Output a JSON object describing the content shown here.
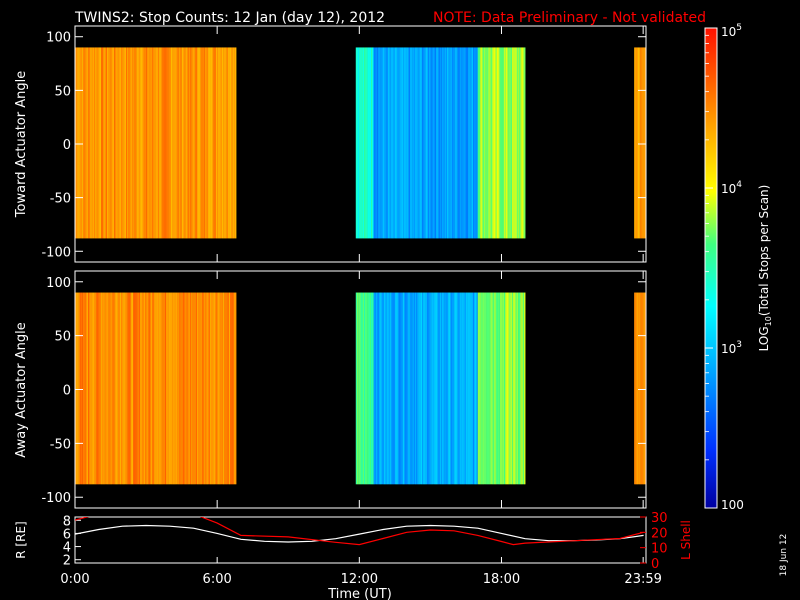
{
  "header": {
    "title": "TWINS2: Stop Counts: 12 Jan (day  12), 2012",
    "note": "NOTE: Data Preliminary - Not validated",
    "note_color": "#ff0000"
  },
  "stamp": "18 Jun 12",
  "chart_data": [
    {
      "type": "heatmap",
      "ylabel": "Toward Actuator Angle",
      "ylim": [
        -110,
        110
      ],
      "yticks": [
        "100",
        "50",
        "0",
        "-50",
        "-100"
      ],
      "ytick_values": [
        100,
        50,
        0,
        -50,
        -100
      ],
      "y_extent": [
        -88,
        90
      ],
      "x_range_hours": [
        0,
        24.1
      ],
      "data_blocks_ut": [
        [
          "0:00",
          "6:50"
        ],
        [
          "11:50",
          "19:00"
        ],
        [
          "23:35",
          "24:05"
        ]
      ],
      "log_counts_segments": [
        {
          "from_hour": 0.0,
          "to_hour": 6.8,
          "mean_log10": 4.45
        },
        {
          "from_hour": 11.85,
          "to_hour": 12.6,
          "mean_log10": 3.4
        },
        {
          "from_hour": 12.6,
          "to_hour": 17.0,
          "mean_log10": 2.85
        },
        {
          "from_hour": 17.0,
          "to_hour": 19.0,
          "mean_log10": 3.8
        },
        {
          "from_hour": 23.6,
          "to_hour": 24.1,
          "mean_log10": 4.4
        }
      ]
    },
    {
      "type": "heatmap",
      "ylabel": "Away Actuator Angle",
      "ylim": [
        -110,
        110
      ],
      "yticks": [
        "100",
        "50",
        "0",
        "-50",
        "-100"
      ],
      "ytick_values": [
        100,
        50,
        0,
        -50,
        -100
      ],
      "y_extent": [
        -88,
        90
      ],
      "x_range_hours": [
        0,
        24.1
      ],
      "data_blocks_ut": [
        [
          "0:00",
          "6:50"
        ],
        [
          "11:50",
          "19:00"
        ],
        [
          "23:35",
          "24:05"
        ]
      ],
      "log_counts_segments": [
        {
          "from_hour": 0.0,
          "to_hour": 6.8,
          "mean_log10": 4.5
        },
        {
          "from_hour": 11.85,
          "to_hour": 12.6,
          "mean_log10": 3.6
        },
        {
          "from_hour": 12.6,
          "to_hour": 17.0,
          "mean_log10": 2.9
        },
        {
          "from_hour": 17.0,
          "to_hour": 19.0,
          "mean_log10": 3.8
        },
        {
          "from_hour": 23.6,
          "to_hour": 24.1,
          "mean_log10": 4.4
        }
      ]
    },
    {
      "type": "line",
      "ylabel_left": "R [RE]",
      "ylabel_right": "L Shell",
      "xlabel": "Time (UT)",
      "xticks": [
        "0:00",
        "6:00",
        "12:00",
        "18:00",
        "23:59"
      ],
      "xtick_hours": [
        0,
        6,
        12,
        18,
        23.98
      ],
      "ylim_left": [
        1.5,
        8.5
      ],
      "ylim_right": [
        0,
        30
      ],
      "yticks_left": [
        "2",
        "4",
        "6",
        "8"
      ],
      "ytick_values_left": [
        2,
        4,
        6,
        8
      ],
      "yticks_right": [
        "0",
        "10",
        "20",
        "30"
      ],
      "ytick_values_right": [
        0,
        10,
        20,
        30
      ],
      "series": [
        {
          "axis": "left",
          "color": "#ffffff",
          "x": [
            0,
            1,
            2,
            3,
            4,
            5,
            6,
            7,
            8,
            9,
            10,
            11,
            12,
            13,
            14,
            15,
            16,
            17,
            18,
            19,
            20,
            21,
            22,
            23,
            24
          ],
          "y": [
            5.9,
            6.6,
            7.1,
            7.2,
            7.1,
            6.8,
            6.0,
            5.1,
            4.8,
            4.7,
            4.8,
            5.2,
            5.9,
            6.6,
            7.1,
            7.2,
            7.1,
            6.8,
            6.0,
            5.2,
            4.9,
            4.9,
            5.0,
            5.2,
            5.7
          ]
        },
        {
          "axis": "right",
          "color": "#ff0000",
          "x": [
            0,
            1.0,
            5.0,
            6.0,
            7.0,
            9.0,
            11.0,
            12.0,
            13.0,
            14.0,
            15.0,
            16.0,
            17.0,
            18.0,
            18.5,
            19.0,
            21.0,
            23.0,
            24.0
          ],
          "y": [
            28,
            32,
            32,
            26,
            18,
            17,
            13.5,
            12,
            16,
            20,
            21.5,
            21,
            18,
            14,
            12,
            13,
            14.5,
            16,
            20
          ]
        }
      ]
    }
  ],
  "colorbar": {
    "label": "LOG10(Total Stops per Scan)",
    "label_log": "LOG",
    "label_sub": "10",
    "label_rest": "(Total Stops per Scan)",
    "ticks": [
      {
        "value": 5,
        "base": "10",
        "exp": "5"
      },
      {
        "value": 4,
        "base": "10",
        "exp": "4"
      },
      {
        "value": 3,
        "base": "10",
        "exp": "3"
      },
      {
        "value": 2,
        "base": "100",
        "exp": ""
      }
    ],
    "range_log10": [
      2,
      5
    ]
  },
  "colors": {
    "axis": "#ffffff",
    "background": "#000000"
  }
}
